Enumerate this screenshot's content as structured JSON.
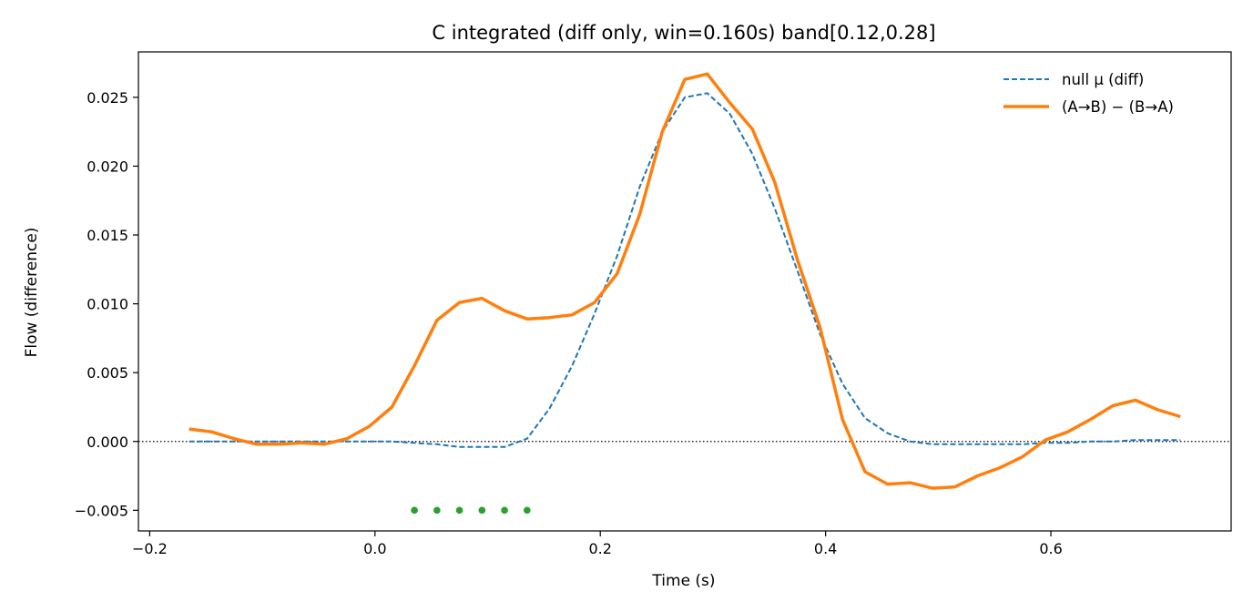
{
  "chart_data": {
    "type": "line",
    "title": "C integrated (diff only, win=0.160s)   band[0.12,0.28]",
    "xlabel": "Time (s)",
    "ylabel": "Flow (difference)",
    "xlim": [
      -0.21,
      0.76
    ],
    "ylim": [
      -0.0065,
      0.0283
    ],
    "x_ticks": [
      -0.2,
      0.0,
      0.2,
      0.4,
      0.6
    ],
    "x_tick_labels": [
      "−0.2",
      "0.0",
      "0.2",
      "0.4",
      "0.6"
    ],
    "y_ticks": [
      -0.005,
      0.0,
      0.005,
      0.01,
      0.015,
      0.02,
      0.025
    ],
    "y_tick_labels": [
      "−0.005",
      "0.000",
      "0.005",
      "0.010",
      "0.015",
      "0.020",
      "0.025"
    ],
    "legend_position": "top-right",
    "zero_line": {
      "y": 0,
      "style": "dotted",
      "color": "#000000"
    },
    "series": [
      {
        "name": "null μ (diff)",
        "style": "dashed",
        "color": "#1f77b4",
        "x": [
          -0.165,
          -0.145,
          -0.125,
          -0.105,
          -0.085,
          -0.065,
          -0.045,
          -0.025,
          -0.005,
          0.015,
          0.035,
          0.055,
          0.075,
          0.095,
          0.115,
          0.135,
          0.155,
          0.175,
          0.195,
          0.215,
          0.235,
          0.255,
          0.275,
          0.295,
          0.315,
          0.335,
          0.355,
          0.375,
          0.395,
          0.415,
          0.435,
          0.455,
          0.475,
          0.495,
          0.515,
          0.535,
          0.555,
          0.575,
          0.595,
          0.615,
          0.635,
          0.655,
          0.675,
          0.695,
          0.715
        ],
        "y": [
          0.0,
          0.0,
          0.0,
          0.0,
          0.0,
          0.0,
          0.0,
          0.0,
          0.0,
          0.0,
          -0.0001,
          -0.0002,
          -0.0004,
          -0.0004,
          -0.0004,
          0.0002,
          0.0024,
          0.0055,
          0.0093,
          0.0135,
          0.0185,
          0.0225,
          0.025,
          0.0253,
          0.0238,
          0.0209,
          0.0169,
          0.0124,
          0.0078,
          0.0042,
          0.0017,
          0.0006,
          0.0,
          -0.0002,
          -0.0002,
          -0.0002,
          -0.0002,
          -0.0002,
          -0.0001,
          -0.0001,
          0.0,
          0.0,
          0.0001,
          0.0001,
          0.0001
        ]
      },
      {
        "name": "(A→B) − (B→A)",
        "style": "solid",
        "color": "#ff7f0e",
        "x": [
          -0.165,
          -0.145,
          -0.125,
          -0.105,
          -0.085,
          -0.065,
          -0.045,
          -0.025,
          -0.005,
          0.015,
          0.035,
          0.055,
          0.075,
          0.095,
          0.115,
          0.135,
          0.155,
          0.175,
          0.195,
          0.215,
          0.235,
          0.255,
          0.275,
          0.295,
          0.315,
          0.335,
          0.355,
          0.375,
          0.395,
          0.415,
          0.435,
          0.455,
          0.475,
          0.495,
          0.515,
          0.535,
          0.555,
          0.575,
          0.595,
          0.615,
          0.635,
          0.655,
          0.675,
          0.695,
          0.715
        ],
        "y": [
          0.0009,
          0.0007,
          0.0002,
          -0.0002,
          -0.0002,
          -0.0001,
          -0.0002,
          0.0002,
          0.0011,
          0.0025,
          0.0055,
          0.0088,
          0.0101,
          0.0104,
          0.0095,
          0.0089,
          0.009,
          0.0092,
          0.0101,
          0.0122,
          0.0165,
          0.0225,
          0.0263,
          0.0267,
          0.0246,
          0.0227,
          0.0188,
          0.0132,
          0.0083,
          0.0016,
          -0.0022,
          -0.0031,
          -0.003,
          -0.0034,
          -0.0033,
          -0.0025,
          -0.0019,
          -0.0011,
          0.0001,
          0.0007,
          0.0016,
          0.0026,
          0.003,
          0.0023,
          0.0018
        ]
      }
    ],
    "markers": {
      "color": "#2ca02c",
      "x": [
        0.035,
        0.055,
        0.075,
        0.095,
        0.115,
        0.135
      ],
      "y": [
        -0.005,
        -0.005,
        -0.005,
        -0.005,
        -0.005,
        -0.005
      ]
    }
  }
}
